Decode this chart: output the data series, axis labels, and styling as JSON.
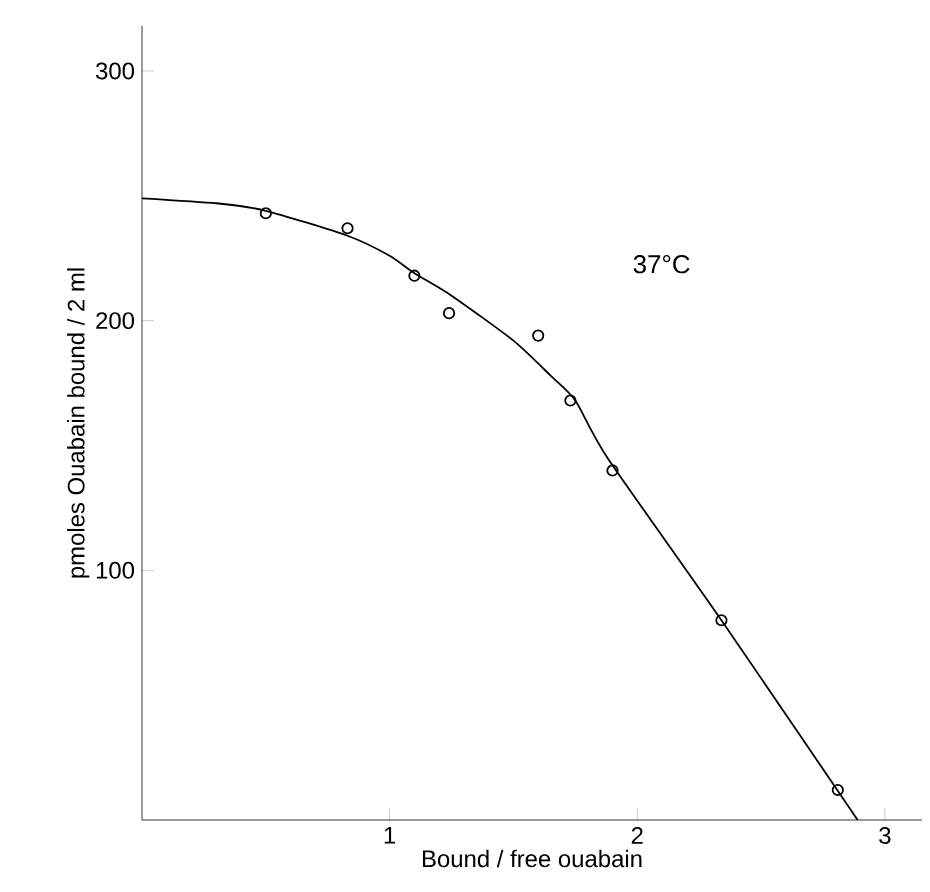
{
  "chart_data": {
    "type": "scatter",
    "xlabel": "Bound / free ouabain",
    "ylabel": "pmoles Ouabain bound / 2 ml",
    "annotations": [
      "37°C"
    ],
    "xlim": [
      0,
      3.15
    ],
    "ylim": [
      0,
      318
    ],
    "xticks": [
      1,
      2,
      3
    ],
    "yticks": [
      100,
      200,
      300
    ],
    "grid": false,
    "marker": "circle",
    "series": [
      {
        "color": "#000000",
        "x": [
          0.5,
          0.83,
          1.1,
          1.24,
          1.6,
          1.73,
          1.9,
          2.34,
          2.81
        ],
        "values": [
          243,
          237,
          218,
          203,
          194,
          168,
          140,
          80,
          12
        ]
      },
      {
        "type": "line",
        "color": "#000000",
        "marker": "none",
        "x": [
          0,
          0.3,
          0.5,
          0.83,
          1.0,
          1.1,
          1.25,
          1.5,
          1.65,
          1.75,
          1.88,
          2.34,
          2.89
        ],
        "values": [
          249,
          247,
          244,
          234,
          226,
          219,
          210,
          192,
          178,
          168,
          145,
          80,
          0
        ]
      }
    ]
  }
}
